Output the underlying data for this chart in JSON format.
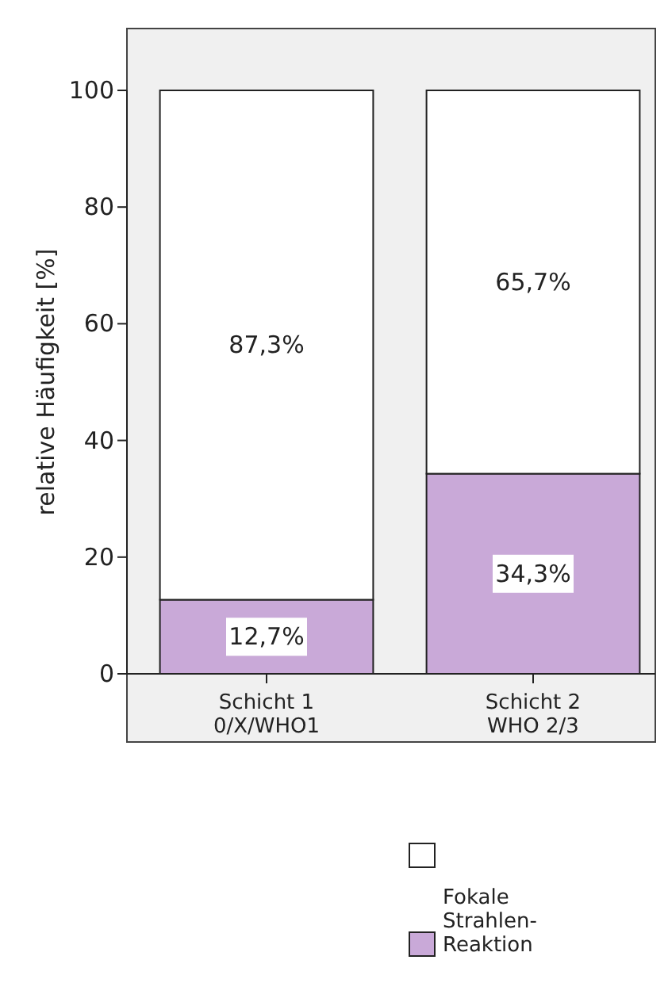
{
  "chart_data": {
    "type": "bar",
    "stacked": true,
    "ylabel": "relative Häufigkeit [%]",
    "categories": [
      "Schicht 1\n0/X/WHO1",
      "Schicht 2\nWHO 2/3"
    ],
    "series": [
      {
        "name": "Fokale Strahlen-Reaktion",
        "color": "#c9a9d8",
        "values": [
          12.7,
          34.3
        ],
        "value_labels": [
          "12,7%",
          "34,3%"
        ]
      },
      {
        "color": "#ffffff",
        "values": [
          87.3,
          65.7
        ],
        "value_labels": [
          "87,3%",
          "65,7%"
        ]
      }
    ],
    "ylim": [
      0,
      100
    ],
    "yticks": [
      0,
      20,
      40,
      60,
      80,
      100
    ],
    "grid": false,
    "legend": "bottom"
  }
}
